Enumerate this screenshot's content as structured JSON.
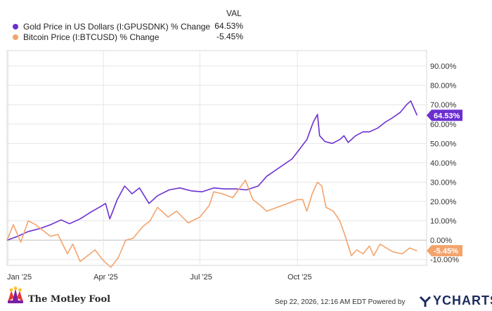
{
  "legend": {
    "column_header": "VAL",
    "items": [
      {
        "label": "Gold Price in US Dollars (I:GPUSDNK) % Change",
        "value": "64.53%",
        "color": "#6b2fd1"
      },
      {
        "label": "Bitcoin Price (I:BTCUSD) % Change",
        "value": "-5.45%",
        "color": "#f4a36c"
      }
    ]
  },
  "footer": {
    "brand": "The Motley Fool",
    "timestamp": "Sep 22, 2026, 12:16 AM EDT Powered by",
    "ycharts": "YCHARTS"
  },
  "chart_data": {
    "type": "line",
    "y_unit": "%",
    "ylim": [
      -13,
      98
    ],
    "y_ticks": [
      "90.00%",
      "80.00%",
      "70.00%",
      "60.00%",
      "50.00%",
      "40.00%",
      "30.00%",
      "20.00%",
      "10.00%",
      "0.00%",
      "-10.00%"
    ],
    "x_ticks": [
      "Jan '25",
      "Apr '25",
      "Jul '25",
      "Oct '25"
    ],
    "x_tick_dates": [
      "2025-01-01",
      "2025-04-01",
      "2025-07-01",
      "2025-10-01"
    ],
    "x_range": [
      "2024-12-31",
      "2026-01-31"
    ],
    "grid": true,
    "series": [
      {
        "name": "Gold Price in US Dollars (I:GPUSDNK) % Change",
        "color": "#6b2fd1",
        "end_label": "64.53%",
        "points": [
          [
            "2024-12-31",
            0
          ],
          [
            "2025-01-10",
            2
          ],
          [
            "2025-01-20",
            4.5
          ],
          [
            "2025-01-31",
            6
          ],
          [
            "2025-02-10",
            8
          ],
          [
            "2025-02-20",
            10.5
          ],
          [
            "2025-02-28",
            8.5
          ],
          [
            "2025-03-10",
            11
          ],
          [
            "2025-03-20",
            14.5
          ],
          [
            "2025-03-28",
            17
          ],
          [
            "2025-04-03",
            19
          ],
          [
            "2025-04-07",
            11
          ],
          [
            "2025-04-14",
            21
          ],
          [
            "2025-04-21",
            28
          ],
          [
            "2025-04-28",
            24
          ],
          [
            "2025-05-05",
            27
          ],
          [
            "2025-05-14",
            19
          ],
          [
            "2025-05-22",
            23
          ],
          [
            "2025-06-02",
            26
          ],
          [
            "2025-06-12",
            27
          ],
          [
            "2025-06-23",
            25.5
          ],
          [
            "2025-07-03",
            25
          ],
          [
            "2025-07-14",
            27
          ],
          [
            "2025-07-24",
            26.5
          ],
          [
            "2025-08-04",
            26.5
          ],
          [
            "2025-08-14",
            26
          ],
          [
            "2025-08-25",
            28
          ],
          [
            "2025-09-02",
            33
          ],
          [
            "2025-09-10",
            36
          ],
          [
            "2025-09-18",
            39
          ],
          [
            "2025-09-26",
            42
          ],
          [
            "2025-10-03",
            47
          ],
          [
            "2025-10-10",
            52
          ],
          [
            "2025-10-16",
            61
          ],
          [
            "2025-10-20",
            65
          ],
          [
            "2025-10-22",
            54
          ],
          [
            "2025-10-27",
            51
          ],
          [
            "2025-11-03",
            50
          ],
          [
            "2025-11-10",
            52
          ],
          [
            "2025-11-14",
            54
          ],
          [
            "2025-11-18",
            50.5
          ],
          [
            "2025-11-25",
            54
          ],
          [
            "2025-12-02",
            56
          ],
          [
            "2025-12-08",
            56
          ],
          [
            "2025-12-16",
            58
          ],
          [
            "2025-12-23",
            61
          ],
          [
            "2025-12-29",
            63
          ],
          [
            "2026-01-06",
            66
          ],
          [
            "2026-01-12",
            70
          ],
          [
            "2026-01-16",
            72
          ],
          [
            "2026-01-20",
            67
          ],
          [
            "2026-01-22",
            64.53
          ]
        ]
      },
      {
        "name": "Bitcoin Price (I:BTCUSD) % Change",
        "color": "#f4a36c",
        "end_label": "-5.45%",
        "points": [
          [
            "2024-12-31",
            0
          ],
          [
            "2025-01-06",
            8
          ],
          [
            "2025-01-13",
            -1
          ],
          [
            "2025-01-20",
            10
          ],
          [
            "2025-01-27",
            8
          ],
          [
            "2025-02-03",
            5
          ],
          [
            "2025-02-10",
            2
          ],
          [
            "2025-02-17",
            3
          ],
          [
            "2025-02-26",
            -7
          ],
          [
            "2025-03-03",
            -2
          ],
          [
            "2025-03-10",
            -11
          ],
          [
            "2025-03-17",
            -8
          ],
          [
            "2025-03-24",
            -5
          ],
          [
            "2025-03-31",
            -10
          ],
          [
            "2025-04-08",
            -14
          ],
          [
            "2025-04-15",
            -9
          ],
          [
            "2025-04-22",
            0
          ],
          [
            "2025-04-29",
            1
          ],
          [
            "2025-05-08",
            7
          ],
          [
            "2025-05-15",
            10
          ],
          [
            "2025-05-22",
            17
          ],
          [
            "2025-06-01",
            12
          ],
          [
            "2025-06-09",
            15
          ],
          [
            "2025-06-20",
            9
          ],
          [
            "2025-07-01",
            12
          ],
          [
            "2025-07-10",
            18
          ],
          [
            "2025-07-14",
            25
          ],
          [
            "2025-07-22",
            24
          ],
          [
            "2025-08-01",
            22
          ],
          [
            "2025-08-13",
            31
          ],
          [
            "2025-08-20",
            21
          ],
          [
            "2025-08-27",
            18
          ],
          [
            "2025-09-02",
            15
          ],
          [
            "2025-09-12",
            17
          ],
          [
            "2025-09-22",
            19
          ],
          [
            "2025-10-01",
            21
          ],
          [
            "2025-10-06",
            21
          ],
          [
            "2025-10-10",
            15
          ],
          [
            "2025-10-15",
            24
          ],
          [
            "2025-10-20",
            30
          ],
          [
            "2025-10-24",
            28
          ],
          [
            "2025-10-28",
            17
          ],
          [
            "2025-11-04",
            15
          ],
          [
            "2025-11-10",
            10
          ],
          [
            "2025-11-14",
            4
          ],
          [
            "2025-11-21",
            -8
          ],
          [
            "2025-11-26",
            -5
          ],
          [
            "2025-12-02",
            -7
          ],
          [
            "2025-12-08",
            -3
          ],
          [
            "2025-12-12",
            -8
          ],
          [
            "2025-12-18",
            -2
          ],
          [
            "2025-12-24",
            -4
          ],
          [
            "2025-12-30",
            -6
          ],
          [
            "2026-01-08",
            -7
          ],
          [
            "2026-01-15",
            -4
          ],
          [
            "2026-01-22",
            -5.45
          ]
        ]
      }
    ]
  }
}
